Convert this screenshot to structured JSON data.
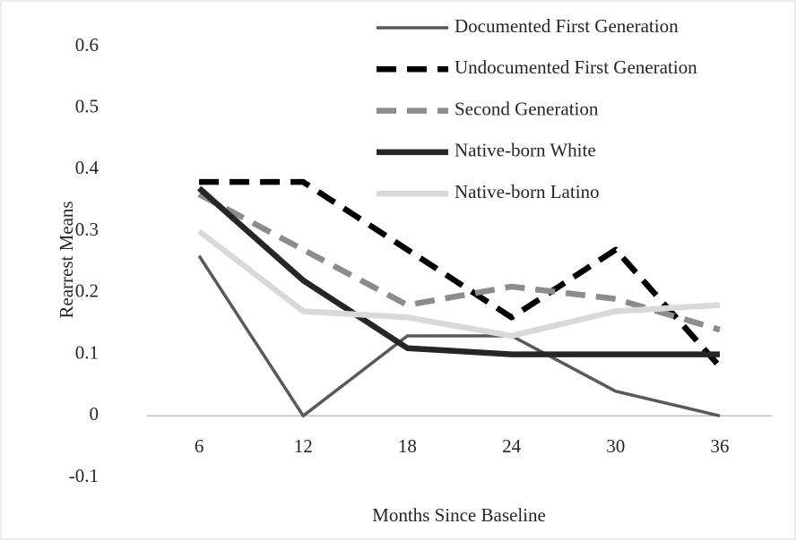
{
  "chart_data": {
    "type": "line",
    "y_label": "Rearrest Means",
    "x_label": "Months Since Baseline",
    "categories": [
      "6",
      "12",
      "18",
      "24",
      "30",
      "36"
    ],
    "series": [
      {
        "name": "Documented First Generation",
        "color": "#595959",
        "dash": false,
        "values": [
          0.26,
          0,
          0.13,
          0.13,
          0.04,
          0
        ]
      },
      {
        "name": "Undocumented First Generation",
        "color": "#000000",
        "dash": true,
        "values": [
          0.38,
          0.38,
          0.27,
          0.16,
          0.27,
          0.08
        ]
      },
      {
        "name": "Second Generation",
        "color": "#8c8c8c",
        "dash": true,
        "values": [
          0.36,
          0.27,
          0.18,
          0.21,
          0.19,
          0.14
        ]
      },
      {
        "name": "Native-born White",
        "color": "#262626",
        "dash": false,
        "values": [
          0.37,
          0.22,
          0.11,
          0.1,
          0.1,
          0.1
        ]
      },
      {
        "name": "Native-born Latino",
        "color": "#d9d9d9",
        "dash": false,
        "values": [
          0.3,
          0.17,
          0.16,
          0.13,
          0.17,
          0.18
        ]
      }
    ],
    "ylim": [
      -0.1,
      0.6
    ],
    "yticks": [
      -0.1,
      0,
      0.1,
      0.2,
      0.3,
      0.4,
      0.5,
      0.6
    ],
    "legend": "top-right"
  }
}
